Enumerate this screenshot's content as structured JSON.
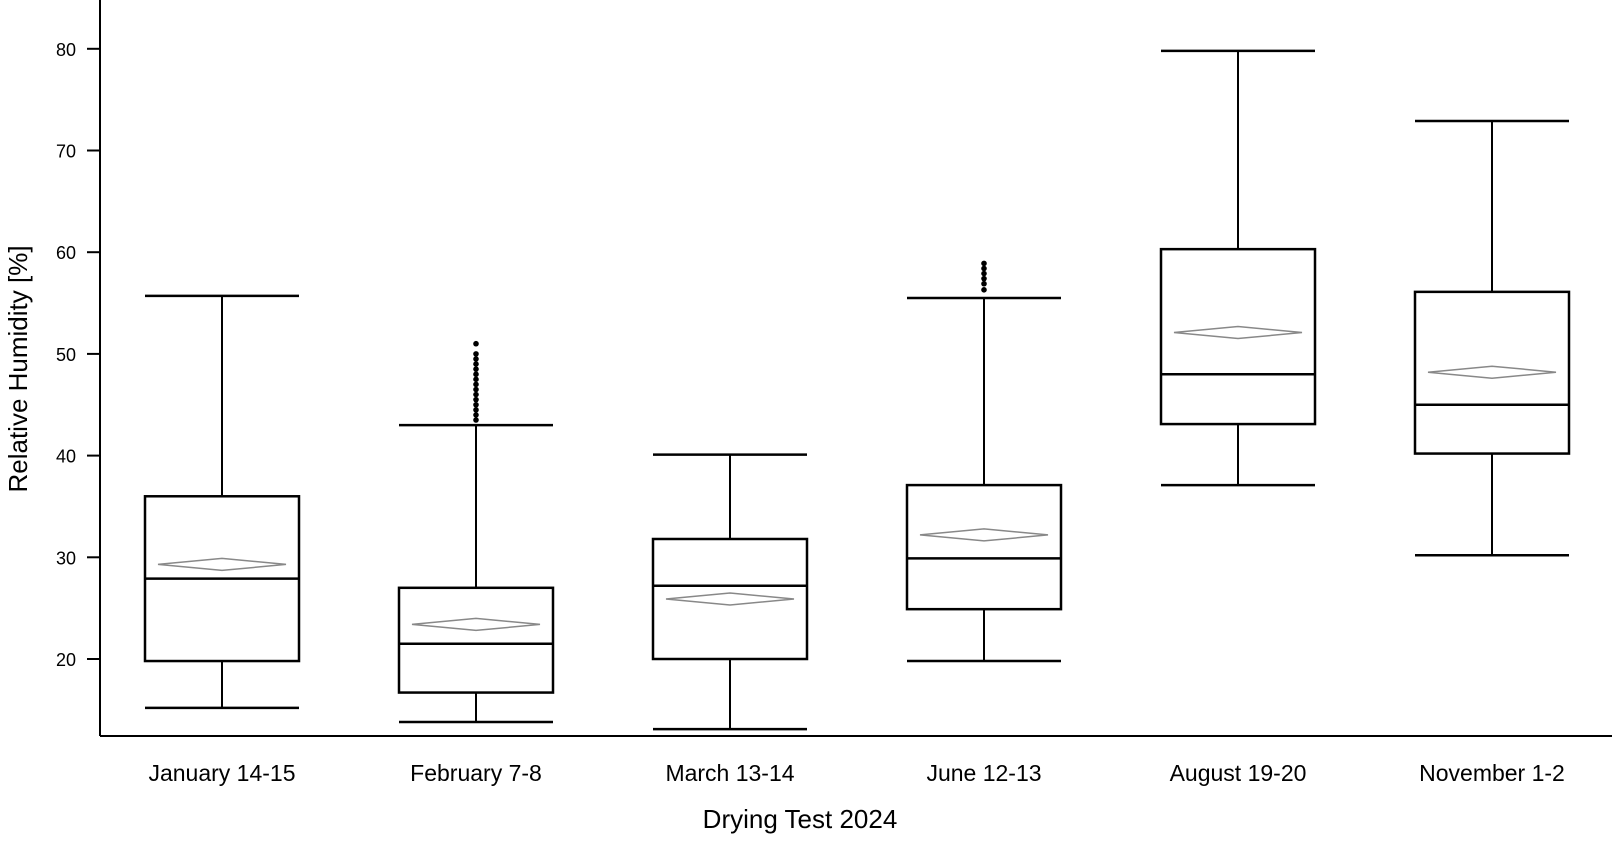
{
  "chart_data": {
    "type": "box",
    "xlabel": "Drying Test 2024",
    "ylabel": "Relative Humidity [%]",
    "ylim": [
      12,
      85
    ],
    "yticks": [
      20,
      30,
      40,
      50,
      60,
      70,
      80
    ],
    "grid": false,
    "categories": [
      "January 14-15",
      "February 7-8",
      "March 13-14",
      "June 12-13",
      "August 19-20",
      "November 1-2"
    ],
    "boxes": [
      {
        "category": "January 14-15",
        "whisker_low": 15.2,
        "q1": 19.8,
        "median": 27.9,
        "q3": 36.0,
        "whisker_high": 55.7,
        "mean": 29.3,
        "outliers": []
      },
      {
        "category": "February 7-8",
        "whisker_low": 13.8,
        "q1": 16.7,
        "median": 21.5,
        "q3": 27.0,
        "whisker_high": 43.0,
        "mean": 23.4,
        "outliers": [
          43.5,
          44.0,
          44.5,
          45.0,
          45.5,
          46.0,
          46.5,
          47.0,
          47.5,
          48.0,
          48.5,
          49.0,
          49.5,
          50.0,
          51.0
        ]
      },
      {
        "category": "March 13-14",
        "whisker_low": 13.1,
        "q1": 20.0,
        "median": 27.2,
        "q3": 31.8,
        "whisker_high": 40.1,
        "mean": 25.9,
        "outliers": []
      },
      {
        "category": "June 12-13",
        "whisker_low": 19.8,
        "q1": 24.9,
        "median": 29.9,
        "q3": 37.1,
        "whisker_high": 55.5,
        "mean": 32.2,
        "outliers": [
          56.3,
          56.9,
          57.4,
          57.9,
          58.4,
          58.9
        ]
      },
      {
        "category": "August 19-20",
        "whisker_low": 37.1,
        "q1": 43.1,
        "median": 48.0,
        "q3": 60.3,
        "whisker_high": 79.8,
        "mean": 52.1,
        "outliers": []
      },
      {
        "category": "November 1-2",
        "whisker_low": 30.2,
        "q1": 40.2,
        "median": 45.0,
        "q3": 56.1,
        "whisker_high": 72.9,
        "mean": 48.2,
        "outliers": []
      }
    ]
  }
}
